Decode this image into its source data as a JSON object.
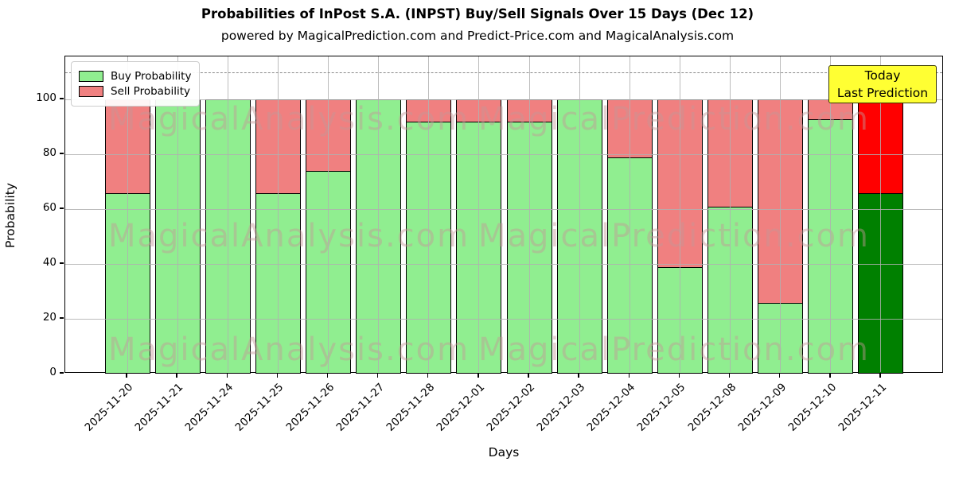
{
  "chart_data": {
    "type": "bar",
    "stacked": true,
    "title": "Probabilities of InPost S.A. (INPST) Buy/Sell Signals Over 15 Days (Dec 12)",
    "subtitle": "powered by MagicalPrediction.com and Predict-Price.com and MagicalAnalysis.com",
    "xlabel": "Days",
    "ylabel": "Probability",
    "categories": [
      "2025-11-20",
      "2025-11-21",
      "2025-11-24",
      "2025-11-25",
      "2025-11-26",
      "2025-11-27",
      "2025-11-28",
      "2025-12-01",
      "2025-12-02",
      "2025-12-03",
      "2025-12-04",
      "2025-12-05",
      "2025-12-08",
      "2025-12-09",
      "2025-12-10",
      "2025-12-11"
    ],
    "series": [
      {
        "name": "Buy Probability",
        "color": "#90ee90",
        "values": [
          66,
          100,
          100,
          66,
          74,
          100,
          92,
          92,
          92,
          100,
          79,
          39,
          61,
          26,
          93,
          66
        ]
      },
      {
        "name": "Sell Probability",
        "color": "#f08080",
        "values": [
          34,
          0,
          0,
          34,
          26,
          0,
          8,
          8,
          8,
          0,
          21,
          61,
          39,
          74,
          7,
          34
        ]
      }
    ],
    "today_bar": {
      "index": 15,
      "buy_color": "#008000",
      "sell_color": "#ff0000"
    },
    "yticks": [
      0,
      20,
      40,
      60,
      80,
      100
    ],
    "ylim": [
      0,
      115.7
    ],
    "grid": true,
    "dashed_line_y": 110,
    "legend": {
      "position": "upper-left",
      "entries": [
        {
          "label": "Buy Probability",
          "color": "#90ee90"
        },
        {
          "label": "Sell Probability",
          "color": "#f08080"
        }
      ]
    },
    "annotation": {
      "line1": "Today",
      "line2": "Last Prediction",
      "bg_color": "#ffff33"
    },
    "watermarks": {
      "left": "MagicalAnalysis.com",
      "right": "MagicalPrediction.com"
    },
    "colors": {
      "buy": "#90ee90",
      "sell": "#f08080",
      "today_buy": "#008000",
      "today_sell": "#ff0000",
      "grid": "#b0b0b0",
      "annotation_bg": "#ffff33"
    }
  }
}
